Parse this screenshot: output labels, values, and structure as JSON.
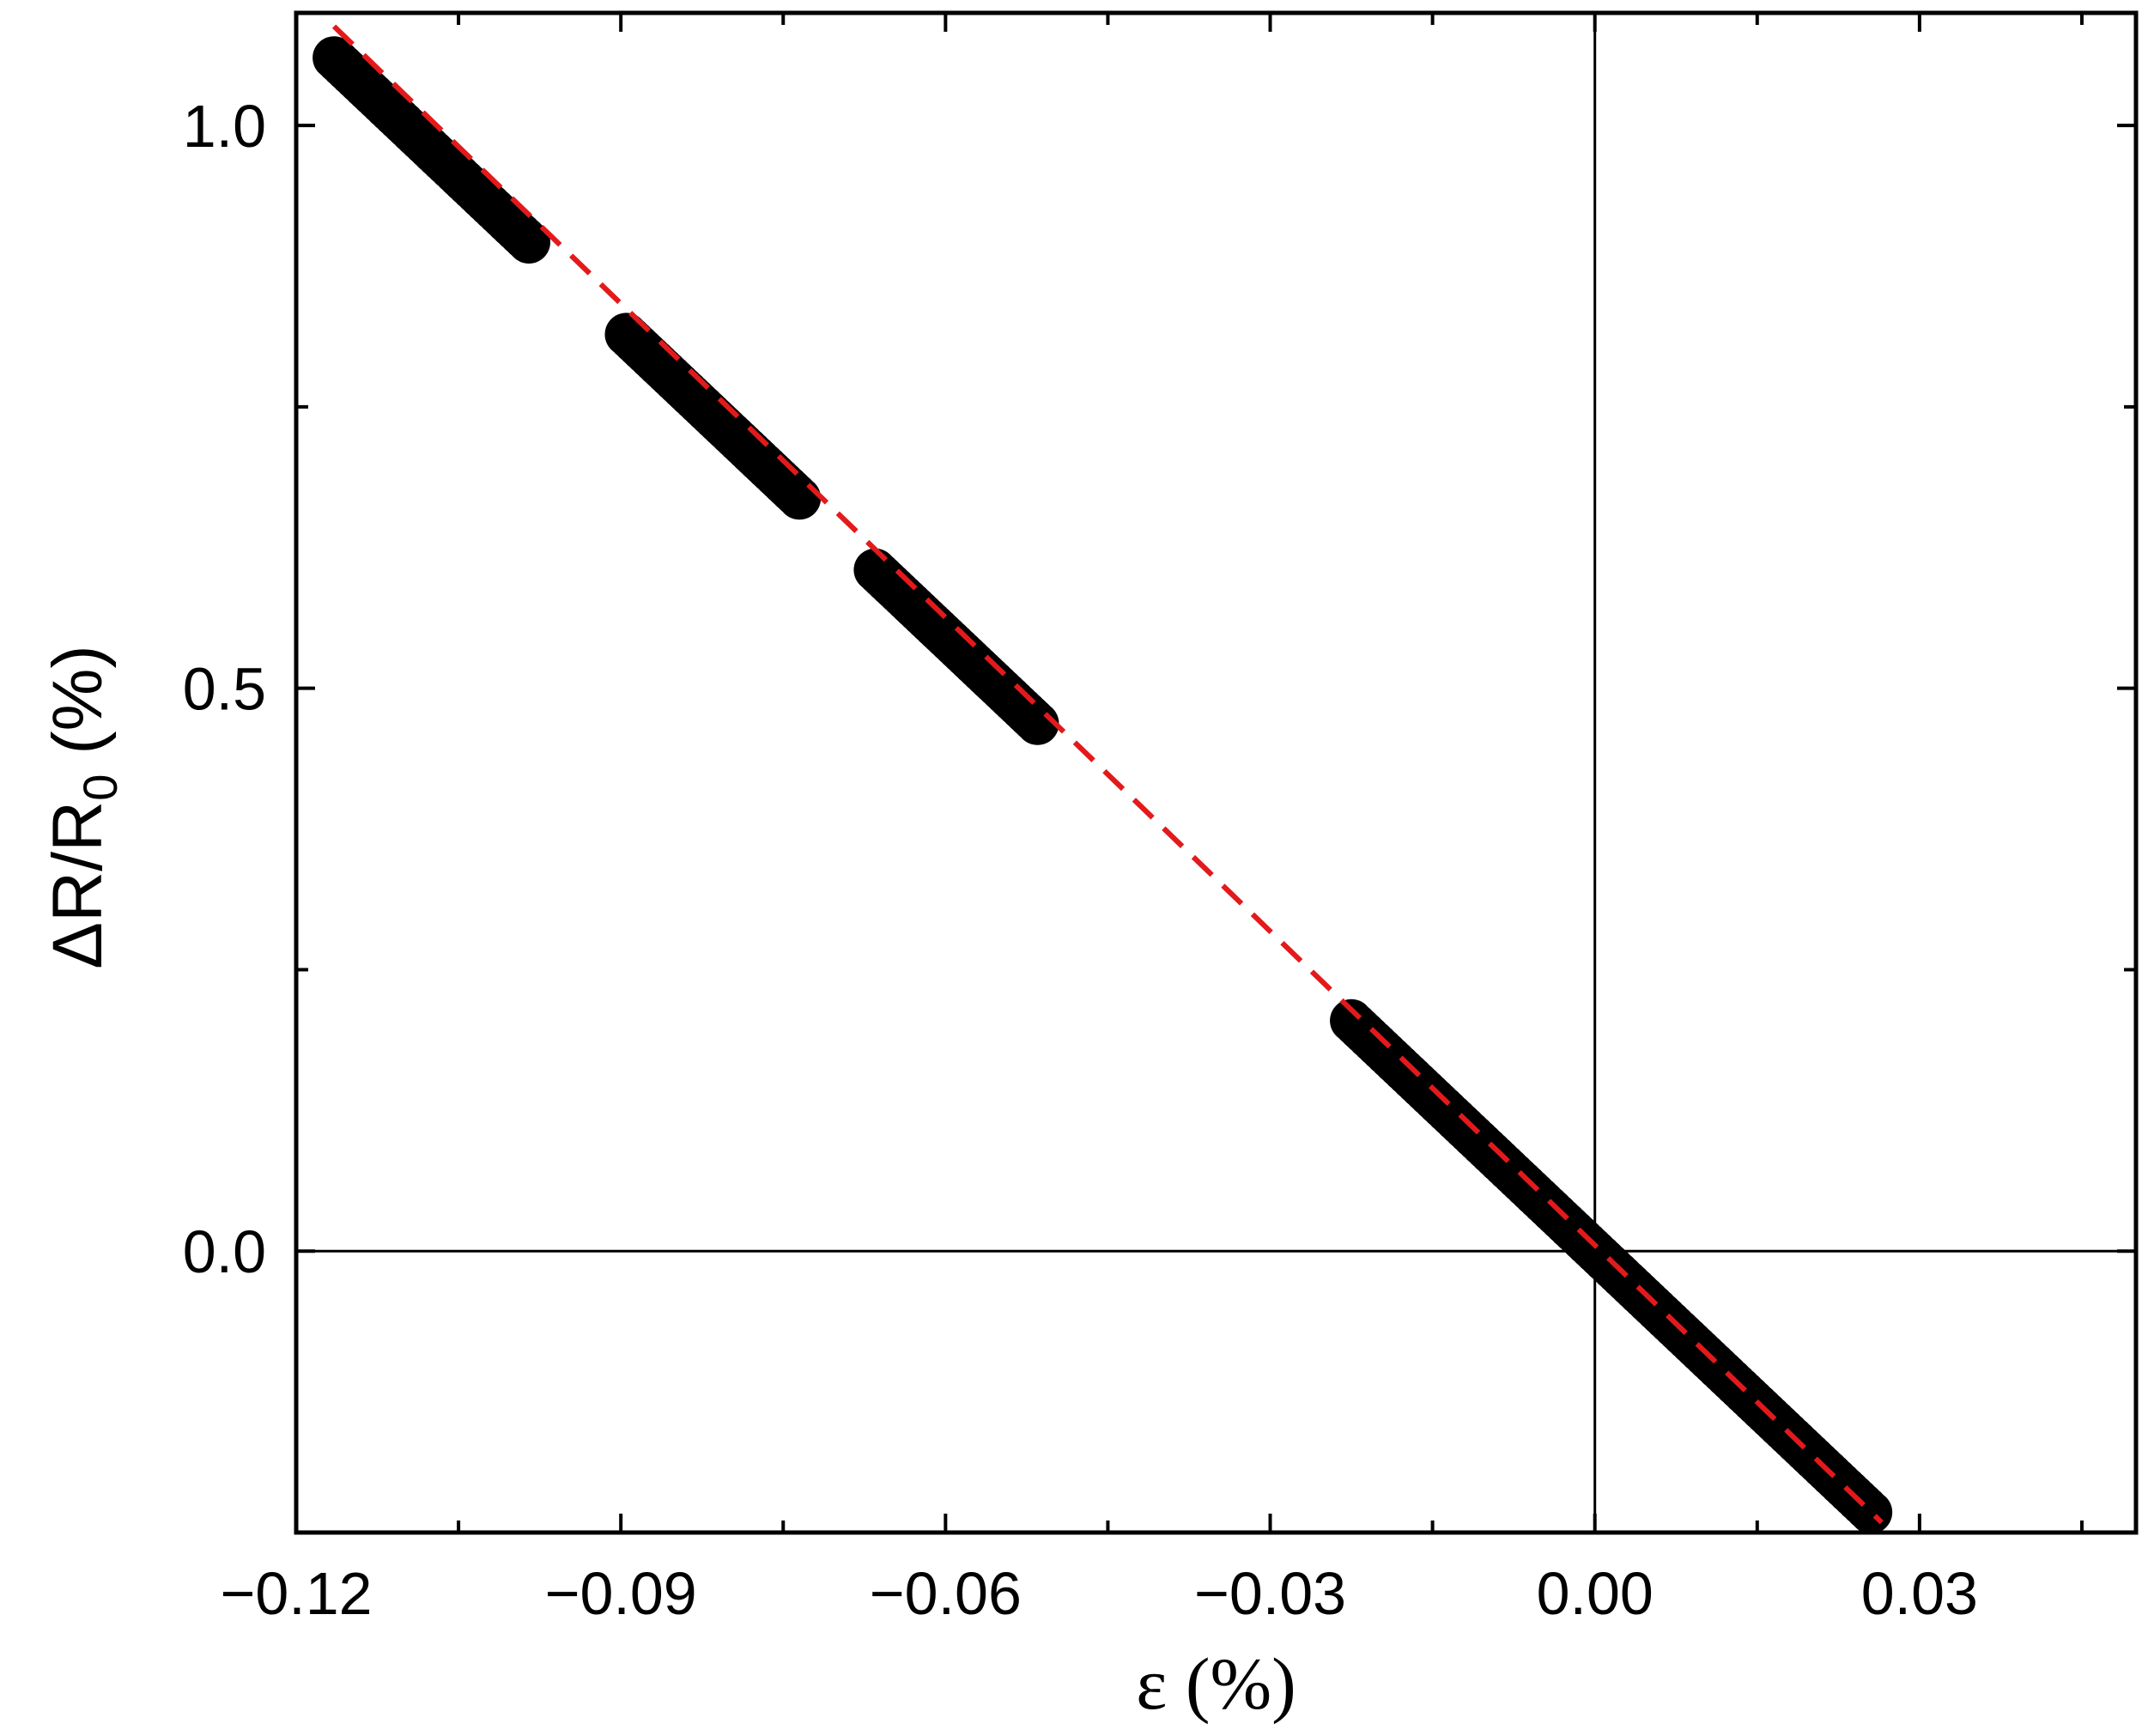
{
  "chart_data": {
    "type": "scatter",
    "title": "",
    "xlabel": "ε (%)",
    "ylabel": {
      "main": "ΔR/R",
      "subscript": "0",
      "suffix": " (%)"
    },
    "xlim": [
      -0.12,
      0.05
    ],
    "ylim": [
      -0.25,
      1.1
    ],
    "x_ticks": [
      -0.12,
      -0.09,
      -0.06,
      -0.03,
      0.0,
      0.03
    ],
    "x_tick_labels": [
      "−0.12",
      "−0.09",
      "−0.06",
      "−0.03",
      "0.00",
      "0.03"
    ],
    "x_minor_ticks": [
      -0.105,
      -0.075,
      -0.045,
      -0.015,
      0.015,
      0.045
    ],
    "y_ticks": [
      0.0,
      0.5,
      1.0
    ],
    "y_tick_labels": [
      "0.0",
      "0.5",
      "1.0"
    ],
    "y_minor_ticks": [
      -0.25,
      0.25,
      0.75
    ],
    "grid": false,
    "reference_lines": {
      "x": 0,
      "y": 0
    },
    "series": [
      {
        "kind": "scatter",
        "color": "#000000",
        "segments": [
          {
            "x_start": -0.1165,
            "x_end": -0.0985,
            "points": 46
          },
          {
            "x_start": -0.0895,
            "x_end": -0.0735,
            "points": 44
          },
          {
            "x_start": -0.0665,
            "x_end": -0.0515,
            "points": 42
          },
          {
            "x_start": -0.0225,
            "x_end": 0.0255,
            "points": 120
          }
        ],
        "y_relation": {
          "slope": -9.1,
          "intercept": 0.0
        }
      },
      {
        "kind": "fit-line",
        "color": "#e31a1c",
        "dashed": true,
        "x": [
          -0.1165,
          0.0265
        ],
        "y": [
          1.088,
          -0.241
        ]
      }
    ]
  }
}
